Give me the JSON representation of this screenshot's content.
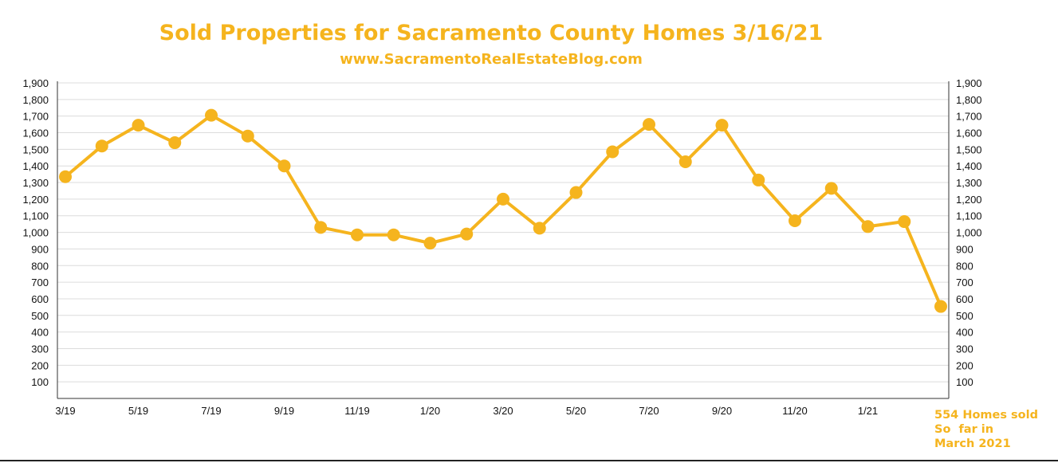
{
  "chart_data": {
    "type": "line",
    "title": "Sold Properties for Sacramento County Homes 3/16/21",
    "subtitle": "www.SacramentoRealEstateBlog.com",
    "x": [
      "3/19",
      "4/19",
      "5/19",
      "6/19",
      "7/19",
      "8/19",
      "9/19",
      "10/19",
      "11/19",
      "12/19",
      "1/20",
      "2/20",
      "3/20",
      "4/20",
      "5/20",
      "6/20",
      "7/20",
      "8/20",
      "9/20",
      "10/20",
      "11/20",
      "12/20",
      "1/21",
      "2/21",
      "3/21"
    ],
    "x_tick_labels": [
      "3/19",
      "5/19",
      "7/19",
      "9/19",
      "11/19",
      "1/20",
      "3/20",
      "5/20",
      "7/20",
      "9/20",
      "11/20",
      "1/21"
    ],
    "series": [
      {
        "name": "",
        "values": [
          1335,
          1520,
          1645,
          1540,
          1705,
          1580,
          1400,
          1030,
          985,
          985,
          935,
          990,
          1200,
          1025,
          1240,
          1485,
          1650,
          1425,
          1645,
          1315,
          1070,
          1265,
          1035,
          1065,
          554
        ]
      }
    ],
    "y_ticks": [
      "100",
      "200",
      "300",
      "400",
      "500",
      "600",
      "700",
      "800",
      "900",
      "1,000",
      "1,100",
      "1,200",
      "1,300",
      "1,400",
      "1,500",
      "1,600",
      "1,700",
      "1,800",
      "1,900"
    ],
    "ylim": [
      0,
      1900
    ],
    "grid": true,
    "line_color": "#f5b41e",
    "grid_color": "#dcdcdc",
    "axis_color": "#333333",
    "text_color": "#f5b41e",
    "annotation": "554 Homes sold\nSo  far in\nMarch 2021"
  }
}
